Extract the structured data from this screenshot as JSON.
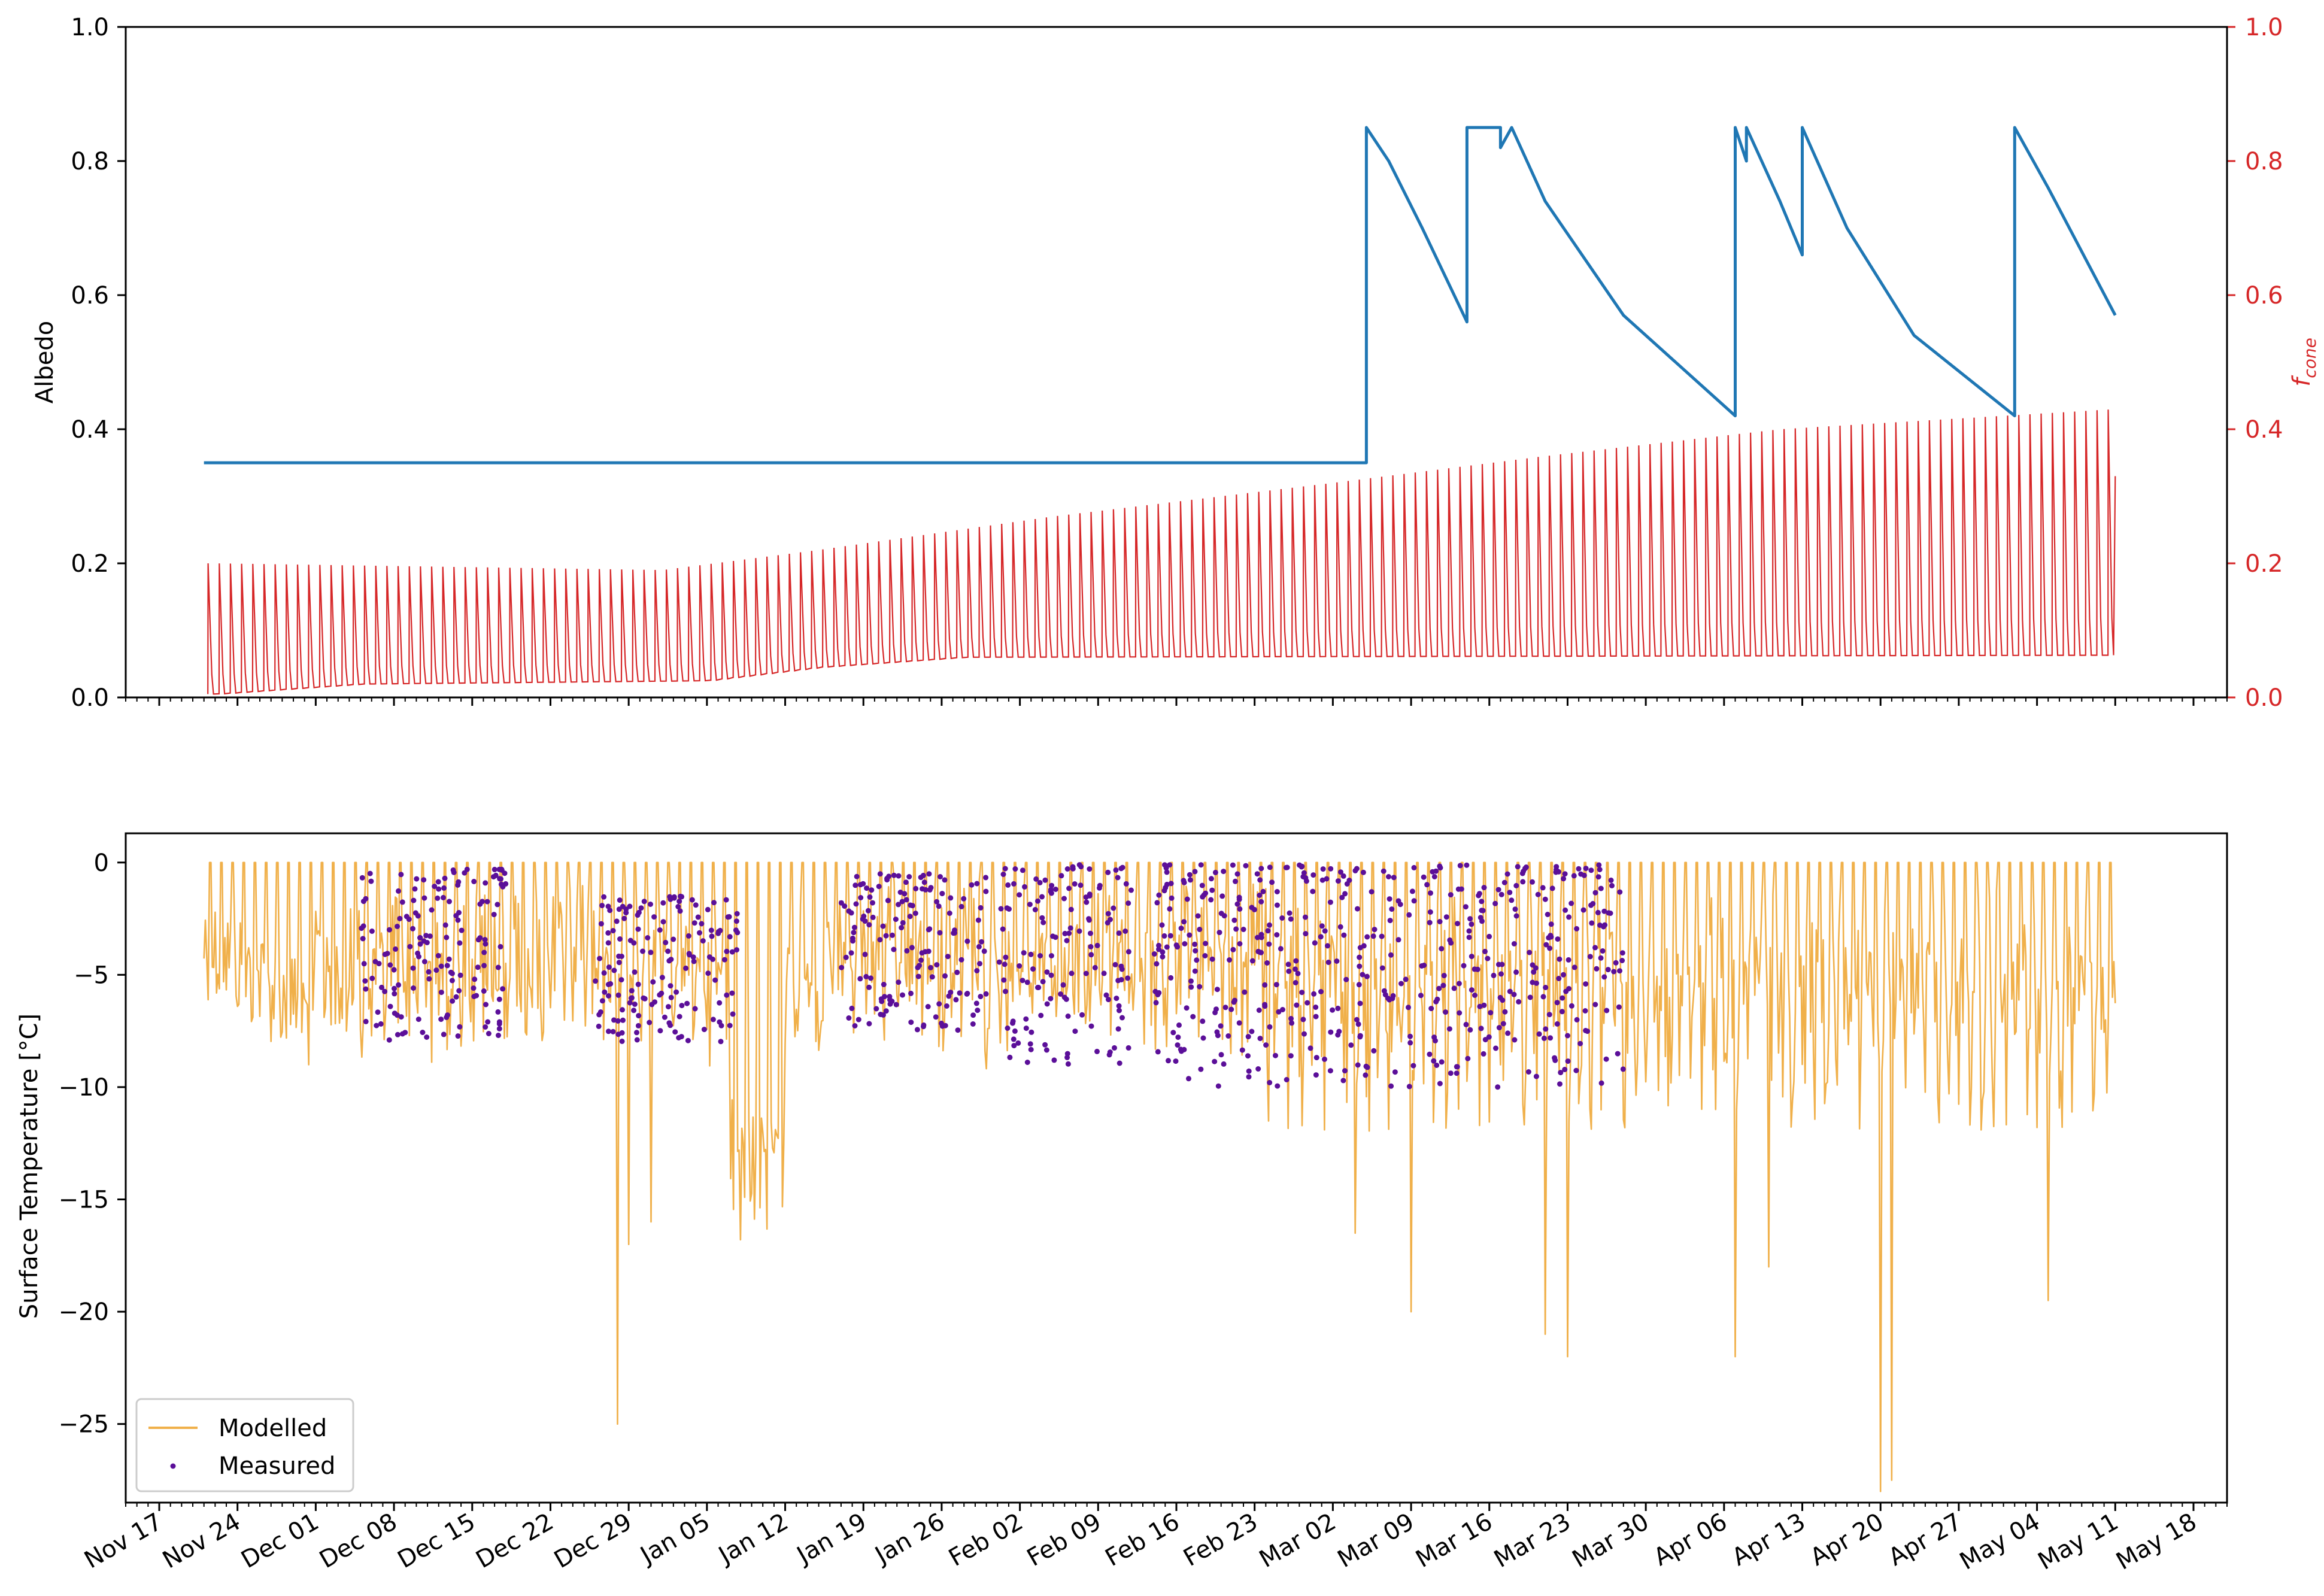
{
  "chart_data": [
    {
      "type": "line",
      "panel": "top",
      "ylabel": "Albedo",
      "ylabel_right": "f",
      "ylabel_right_sub": "cone",
      "ylim": [
        0,
        1
      ],
      "yticks": [
        "0.0",
        "0.2",
        "0.4",
        "0.6",
        "0.8",
        "1.0"
      ],
      "xlim": [
        "2019-11-14",
        "2020-05-20"
      ],
      "right_axis_color": "#d62728",
      "series": [
        {
          "color": "#1f77b4",
          "axis": "left",
          "points": [
            [
              "2019-11-21",
              0.35
            ],
            [
              "2020-03-04",
              0.35
            ],
            [
              "2020-03-04",
              0.85
            ],
            [
              "2020-03-06",
              0.8
            ],
            [
              "2020-03-09",
              0.7
            ],
            [
              "2020-03-13",
              0.56
            ],
            [
              "2020-03-13",
              0.85
            ],
            [
              "2020-03-16",
              0.85
            ],
            [
              "2020-03-16",
              0.82
            ],
            [
              "2020-03-17",
              0.85
            ],
            [
              "2020-03-20",
              0.74
            ],
            [
              "2020-03-27",
              0.57
            ],
            [
              "2020-04-06",
              0.42
            ],
            [
              "2020-04-06",
              0.85
            ],
            [
              "2020-04-07",
              0.8
            ],
            [
              "2020-04-07",
              0.85
            ],
            [
              "2020-04-10",
              0.74
            ],
            [
              "2020-04-12",
              0.66
            ],
            [
              "2020-04-12",
              0.85
            ],
            [
              "2020-04-16",
              0.7
            ],
            [
              "2020-04-22",
              0.54
            ],
            [
              "2020-05-01",
              0.42
            ],
            [
              "2020-05-01",
              0.85
            ],
            [
              "2020-05-04",
              0.76
            ],
            [
              "2020-05-10",
              0.57
            ]
          ]
        },
        {
          "color": "#d62728",
          "axis": "right",
          "style": "daily-cycle",
          "start": "2019-11-21",
          "end": "2020-05-10",
          "envelope_max": [
            [
              "2019-11-22",
              0.2
            ],
            [
              "2020-01-01",
              0.19
            ],
            [
              "2020-01-15",
              0.22
            ],
            [
              "2020-02-05",
              0.27
            ],
            [
              "2020-03-01",
              0.32
            ],
            [
              "2020-03-20",
              0.36
            ],
            [
              "2020-04-10",
              0.4
            ],
            [
              "2020-05-10",
              0.43
            ]
          ],
          "envelope_min": [
            [
              "2019-11-22",
              0.005
            ],
            [
              "2019-12-05",
              0.02
            ],
            [
              "2020-01-05",
              0.025
            ],
            [
              "2020-01-15",
              0.045
            ],
            [
              "2020-01-28",
              0.06
            ],
            [
              "2020-05-10",
              0.063
            ]
          ]
        }
      ]
    },
    {
      "type": "line",
      "panel": "bottom",
      "ylabel": "Surface Temperature [°C]",
      "ylim": [
        -28.5,
        1.3
      ],
      "yticks": [
        "0",
        "−5",
        "−10",
        "−15",
        "−20",
        "−25"
      ],
      "xlim": [
        "2019-11-14",
        "2020-05-20"
      ],
      "xticks": [
        "Nov 17",
        "Nov 24",
        "Dec 01",
        "Dec 08",
        "Dec 15",
        "Dec 22",
        "Dec 29",
        "Jan 05",
        "Jan 12",
        "Jan 19",
        "Jan 26",
        "Feb 02",
        "Feb 09",
        "Feb 16",
        "Feb 23",
        "Mar 02",
        "Mar 09",
        "Mar 16",
        "Mar 23",
        "Mar 30",
        "Apr 06",
        "Apr 13",
        "Apr 20",
        "Apr 27",
        "May 04",
        "May 11",
        "May 18"
      ],
      "legend": "lower-left",
      "series": [
        {
          "name": "Modelled",
          "color": "#f0b04a",
          "style": "line",
          "start": "2019-11-21",
          "end": "2020-05-10",
          "notable_minima": [
            [
              "2019-12-28",
              -25.0
            ],
            [
              "2019-12-29",
              -17.0
            ],
            [
              "2019-12-31",
              -16.0
            ],
            [
              "2020-01-10",
              -12.0
            ],
            [
              "2020-03-03",
              -16.5
            ],
            [
              "2020-03-08",
              -20.0
            ],
            [
              "2020-03-20",
              -21.0
            ],
            [
              "2020-03-22",
              -22.0
            ],
            [
              "2020-04-06",
              -22.0
            ],
            [
              "2020-04-09",
              -18.0
            ],
            [
              "2020-04-19",
              -28.0
            ],
            [
              "2020-04-20",
              -27.5
            ],
            [
              "2020-05-04",
              -19.5
            ]
          ]
        },
        {
          "name": "Measured",
          "color": "#5b0f99",
          "style": "scatter",
          "ranges": [
            [
              "2019-12-05",
              "2019-12-18",
              -8.0,
              -0.3
            ],
            [
              "2019-12-26",
              "2020-01-08",
              -8.0,
              -1.5
            ],
            [
              "2020-01-17",
              "2020-01-30",
              -7.5,
              -0.5
            ],
            [
              "2020-01-31",
              "2020-02-12",
              -9.0,
              -0.1
            ],
            [
              "2020-02-14",
              "2020-03-27",
              -10.0,
              -0.1
            ]
          ]
        }
      ]
    }
  ],
  "legend": {
    "modelled_label": "Modelled",
    "measured_label": "Measured"
  }
}
